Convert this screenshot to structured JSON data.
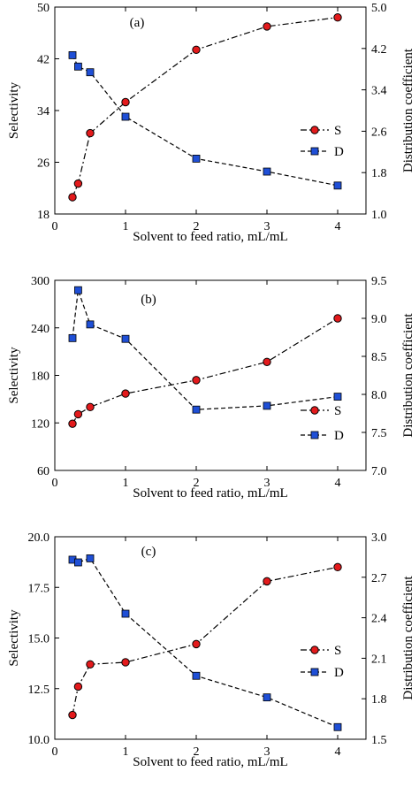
{
  "colors": {
    "s_marker_fill": "#e31a1c",
    "d_marker_fill": "#1f4fd6",
    "line": "#000000",
    "background": "#ffffff"
  },
  "chart_data": [
    {
      "type": "line",
      "panel_label": "(a)",
      "xlabel": "Solvent to feed ratio, mL/mL",
      "ylabel": "Selectivity",
      "y2label": "Distribution coefficient",
      "xlim": [
        0,
        4.4
      ],
      "ylim": [
        18,
        50
      ],
      "y2lim": [
        1.0,
        5.0
      ],
      "xticks": [
        0,
        1,
        2,
        3,
        4
      ],
      "yticks": [
        18,
        26,
        34,
        42,
        50
      ],
      "y2ticks": [
        1.0,
        1.8,
        2.6,
        3.4,
        4.2,
        5.0
      ],
      "y2ticklabels": [
        "1.0",
        "1.8",
        "2.6",
        "3.4",
        "4.2",
        "5.0"
      ],
      "grid": false,
      "legend": "right",
      "series": [
        {
          "name": "S",
          "axis": "left",
          "marker": "circle",
          "linestyle": "dashdot",
          "x": [
            0.25,
            0.33,
            0.5,
            1,
            2,
            3,
            4
          ],
          "y": [
            20.6,
            22.7,
            30.5,
            35.3,
            43.4,
            47.0,
            48.4
          ]
        },
        {
          "name": "D",
          "axis": "right",
          "marker": "square",
          "linestyle": "dashed",
          "x": [
            0.25,
            0.33,
            0.5,
            1,
            2,
            3,
            4
          ],
          "y": [
            4.07,
            3.85,
            3.74,
            2.88,
            2.07,
            1.82,
            1.55
          ]
        }
      ]
    },
    {
      "type": "line",
      "panel_label": "(b)",
      "xlabel": "Solvent to feed ratio, mL/mL",
      "ylabel": "Selectivity",
      "y2label": "Distribution coefficient",
      "xlim": [
        0,
        4.4
      ],
      "ylim": [
        60,
        300
      ],
      "y2lim": [
        7.0,
        9.5
      ],
      "xticks": [
        0,
        1,
        2,
        3,
        4
      ],
      "yticks": [
        60,
        120,
        180,
        240,
        300
      ],
      "y2ticks": [
        7.0,
        7.5,
        8.0,
        8.5,
        9.0,
        9.5
      ],
      "y2ticklabels": [
        "7.0",
        "7.5",
        "8.0",
        "8.5",
        "9.0",
        "9.5"
      ],
      "grid": false,
      "legend": "bottom-right",
      "series": [
        {
          "name": "S",
          "axis": "left",
          "marker": "circle",
          "linestyle": "dashdot",
          "x": [
            0.25,
            0.33,
            0.5,
            1,
            2,
            3,
            4
          ],
          "y": [
            119,
            131,
            140,
            157,
            174,
            197,
            252
          ]
        },
        {
          "name": "D",
          "axis": "right",
          "marker": "square",
          "linestyle": "dashed",
          "x": [
            0.25,
            0.33,
            0.5,
            1,
            2,
            3,
            4
          ],
          "y": [
            8.74,
            9.37,
            8.92,
            8.73,
            7.8,
            7.85,
            7.97
          ]
        }
      ]
    },
    {
      "type": "line",
      "panel_label": "(c)",
      "xlabel": "Solvent to feed ratio, mL/mL",
      "ylabel": "Selectivity",
      "y2label": "Distribution coefficient",
      "xlim": [
        0,
        4.4
      ],
      "ylim": [
        10.0,
        20.0
      ],
      "y2lim": [
        1.5,
        3.0
      ],
      "xticks": [
        0,
        1,
        2,
        3,
        4
      ],
      "yticks": [
        10.0,
        12.5,
        15.0,
        17.5,
        20.0
      ],
      "yticklabels": [
        "10.0",
        "12.5",
        "15.0",
        "17.5",
        "20.0"
      ],
      "y2ticks": [
        1.5,
        1.8,
        2.1,
        2.4,
        2.7,
        3.0
      ],
      "y2ticklabels": [
        "1.5",
        "1.8",
        "2.1",
        "2.4",
        "2.7",
        "3.0"
      ],
      "grid": false,
      "legend": "right",
      "series": [
        {
          "name": "S",
          "axis": "left",
          "marker": "circle",
          "linestyle": "dashdot",
          "x": [
            0.25,
            0.33,
            0.5,
            1,
            2,
            3,
            4
          ],
          "y": [
            11.2,
            12.6,
            13.7,
            13.8,
            14.7,
            17.8,
            18.5
          ]
        },
        {
          "name": "D",
          "axis": "right",
          "marker": "square",
          "linestyle": "dashed",
          "x": [
            0.25,
            0.33,
            0.5,
            1,
            2,
            3,
            4
          ],
          "y": [
            2.83,
            2.81,
            2.84,
            2.43,
            1.97,
            1.81,
            1.59
          ]
        }
      ]
    }
  ]
}
